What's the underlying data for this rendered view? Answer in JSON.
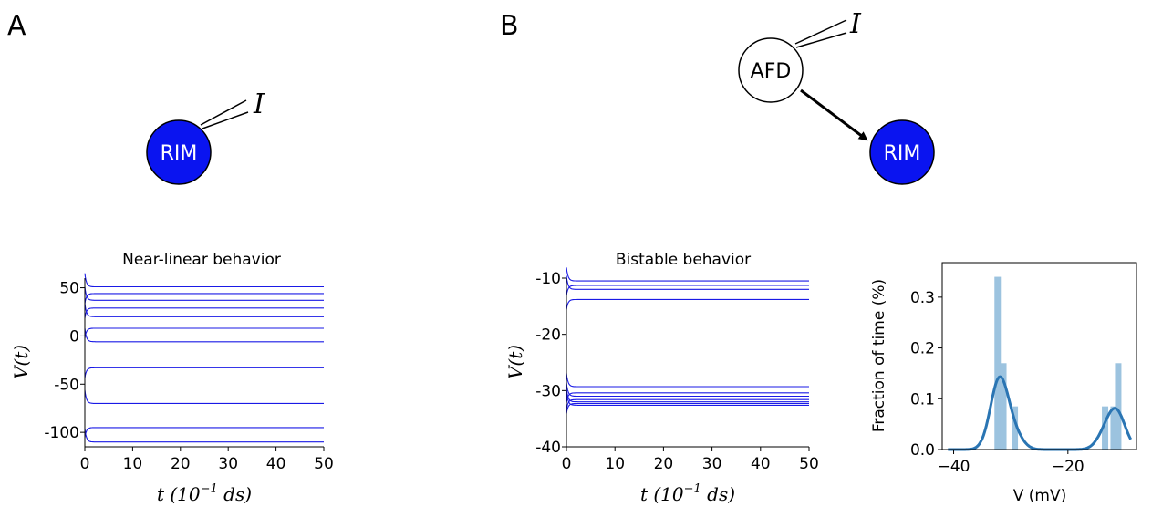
{
  "panels": {
    "A": {
      "label": "A",
      "diagram": {
        "neuron_label": "RIM",
        "input_label": "I"
      },
      "chart": {
        "title": "Near-linear behavior",
        "ylabel": "V(t)",
        "xlabel_prefix": "t (10",
        "xlabel_exp": "−1",
        "xlabel_suffix": " ds)",
        "xticks": [
          "0",
          "10",
          "20",
          "30",
          "40",
          "50"
        ],
        "yticks": [
          "50",
          "0",
          "-50",
          "-100"
        ]
      }
    },
    "B": {
      "label": "B",
      "diagram": {
        "source_label": "AFD",
        "target_label": "RIM",
        "input_label": "I"
      },
      "chart": {
        "title": "Bistable behavior",
        "ylabel": "V(t)",
        "xlabel_prefix": "t (10",
        "xlabel_exp": "−1",
        "xlabel_suffix": " ds)",
        "xticks": [
          "0",
          "10",
          "20",
          "30",
          "40",
          "50"
        ],
        "yticks": [
          "-10",
          "-20",
          "-30",
          "-40"
        ]
      },
      "hist": {
        "ylabel": "Fraction of time (%)",
        "xlabel": "V (mV)",
        "xticks": [
          "−40",
          "−20"
        ],
        "yticks": [
          "0.0",
          "0.1",
          "0.2",
          "0.3"
        ]
      }
    }
  },
  "colors": {
    "neuron_fill": "#0a14f0",
    "trace": "#1a1ae6",
    "hist_bar": "#9cc3df",
    "kde": "#2a75b3"
  },
  "chart_data": [
    {
      "type": "line",
      "title": "Near-linear behavior",
      "xlabel": "t (10^-1 ds)",
      "ylabel": "V(t)",
      "xlim": [
        0,
        50
      ],
      "ylim": [
        -115,
        60
      ],
      "steady_values": [
        51,
        44,
        37,
        29,
        20,
        8,
        -6,
        -33,
        -70,
        -95,
        -110
      ]
    },
    {
      "type": "line",
      "title": "Bistable behavior",
      "xlabel": "t (10^-1 ds)",
      "ylabel": "V(t)",
      "xlim": [
        0,
        50
      ],
      "ylim": [
        -40,
        -10
      ],
      "steady_values": [
        -10.5,
        -11.3,
        -12.0,
        -13.8,
        -29.3,
        -30.4,
        -31.0,
        -31.6,
        -32.0,
        -32.3,
        -32.6
      ]
    },
    {
      "type": "bar",
      "xlabel": "V (mV)",
      "ylabel": "Fraction of time (%)",
      "xlim": [
        -42,
        -8
      ],
      "ylim": [
        0,
        0.35
      ],
      "bins": [
        {
          "x": -32.3,
          "value": 0.34
        },
        {
          "x": -31.3,
          "value": 0.17
        },
        {
          "x": -29.3,
          "value": 0.085
        },
        {
          "x": -13.5,
          "value": 0.085
        },
        {
          "x": -12.0,
          "value": 0.085
        },
        {
          "x": -11.2,
          "value": 0.17
        }
      ]
    }
  ]
}
